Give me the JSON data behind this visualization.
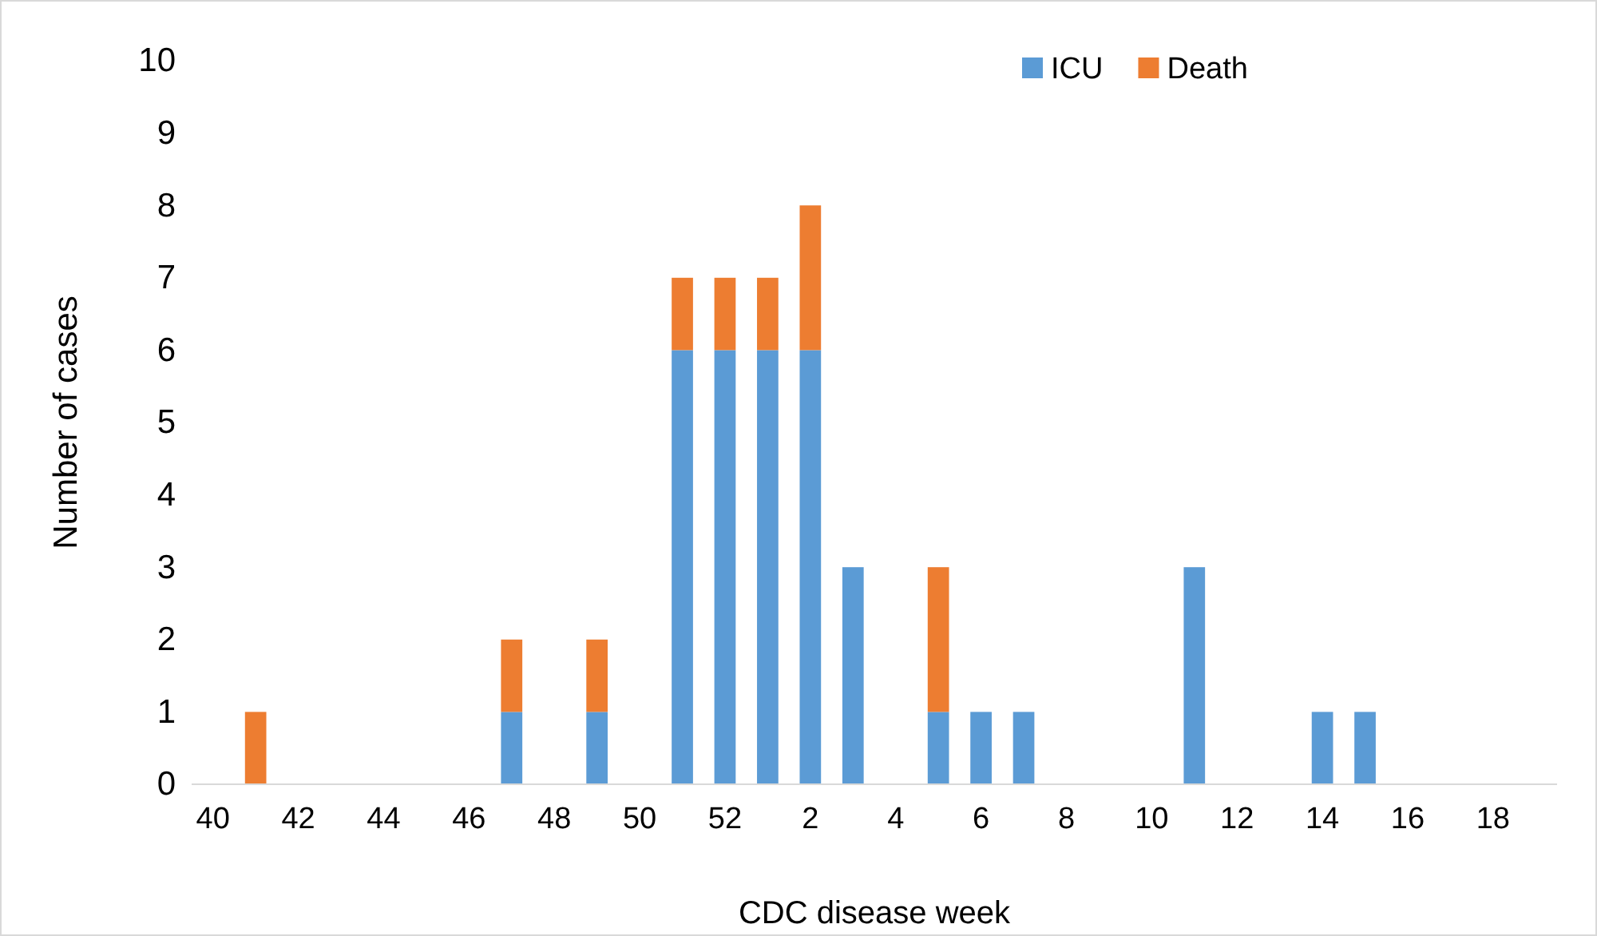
{
  "chart_data": {
    "type": "bar",
    "stacked": true,
    "xlabel": "CDC disease week",
    "ylabel": "Number of cases",
    "categories": [
      "40",
      null,
      "42",
      null,
      "44",
      null,
      "46",
      null,
      "48",
      null,
      "50",
      null,
      "52",
      null,
      "2",
      null,
      "4",
      null,
      "6",
      null,
      "8",
      null,
      "10",
      null,
      "12",
      null,
      "14",
      null,
      "16",
      null,
      "18",
      null
    ],
    "series": [
      {
        "name": "ICU",
        "color": "#5b9bd5",
        "values": [
          0,
          0,
          0,
          0,
          0,
          0,
          0,
          1,
          0,
          1,
          0,
          6,
          6,
          6,
          6,
          3,
          0,
          1,
          1,
          1,
          0,
          0,
          0,
          3,
          0,
          0,
          1,
          1,
          0,
          0,
          0,
          0
        ]
      },
      {
        "name": "Death",
        "color": "#ed7d31",
        "values": [
          0,
          1,
          0,
          0,
          0,
          0,
          0,
          1,
          0,
          1,
          0,
          1,
          1,
          1,
          2,
          0,
          0,
          2,
          0,
          0,
          0,
          0,
          0,
          0,
          0,
          0,
          0,
          0,
          0,
          0,
          0,
          0
        ]
      }
    ],
    "ylim": [
      0,
      10
    ],
    "yticks": [
      0,
      1,
      2,
      3,
      4,
      5,
      6,
      7,
      8,
      9,
      10
    ],
    "grid": false,
    "legend": "top right"
  }
}
